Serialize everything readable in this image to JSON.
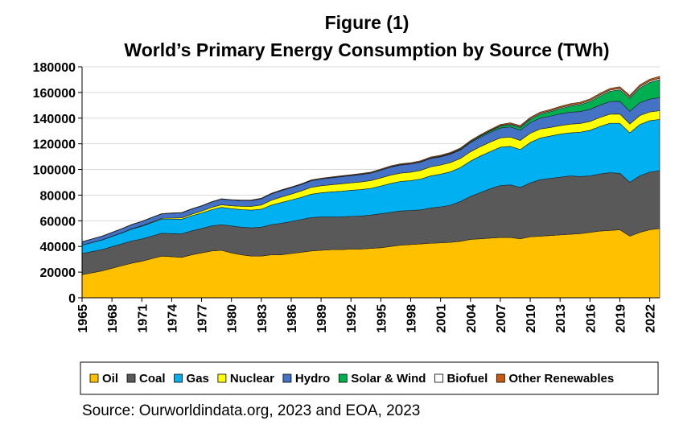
{
  "figure": {
    "title_line1": "Figure (1)",
    "title_line2": "World’s Primary Energy Consumption by Source (TWh)",
    "source": "Source: Ourworldindata.org, 2023 and EOA, 2023"
  },
  "chart_data": {
    "type": "area",
    "stacked": true,
    "title": "World’s Primary Energy Consumption by Source (TWh)",
    "xlabel": "",
    "ylabel": "",
    "ylim": [
      0,
      180000
    ],
    "yticks": [
      "0",
      "20000",
      "40000",
      "60000",
      "80000",
      "100000",
      "120000",
      "140000",
      "160000",
      "180000"
    ],
    "xticks": [
      "1965",
      "1968",
      "1971",
      "1974",
      "1977",
      "1980",
      "1983",
      "1986",
      "1989",
      "1992",
      "1995",
      "1998",
      "2001",
      "2004",
      "2007",
      "2010",
      "2013",
      "2016",
      "2019",
      "2022"
    ],
    "grid": "horizontal",
    "legend_position": "bottom",
    "x": [
      1965,
      1966,
      1967,
      1968,
      1969,
      1970,
      1971,
      1972,
      1973,
      1974,
      1975,
      1976,
      1977,
      1978,
      1979,
      1980,
      1981,
      1982,
      1983,
      1984,
      1985,
      1986,
      1987,
      1988,
      1989,
      1990,
      1991,
      1992,
      1993,
      1994,
      1995,
      1996,
      1997,
      1998,
      1999,
      2000,
      2001,
      2002,
      2003,
      2004,
      2005,
      2006,
      2007,
      2008,
      2009,
      2010,
      2011,
      2012,
      2013,
      2014,
      2015,
      2016,
      2017,
      2018,
      2019,
      2020,
      2021,
      2022,
      2023
    ],
    "series": [
      {
        "name": "Oil",
        "color": "#FFC000",
        "values": [
          18000,
          19500,
          21000,
          23000,
          25000,
          27000,
          28500,
          30500,
          32500,
          32000,
          31500,
          33500,
          35000,
          36500,
          37000,
          35000,
          33500,
          32500,
          32500,
          33500,
          33500,
          34500,
          35500,
          36500,
          37000,
          37500,
          37500,
          38000,
          38000,
          38500,
          39000,
          40000,
          41000,
          41500,
          42000,
          42500,
          42800,
          43200,
          44000,
          45500,
          46000,
          46500,
          47000,
          47000,
          46000,
          47500,
          48000,
          48500,
          49000,
          49500,
          50000,
          51000,
          52000,
          52500,
          53000,
          48000,
          51000,
          53000,
          54000
        ]
      },
      {
        "name": "Coal",
        "color": "#595959",
        "values": [
          16500,
          16500,
          16500,
          16800,
          17000,
          17300,
          17300,
          17500,
          17800,
          18000,
          18300,
          18600,
          19000,
          19500,
          20000,
          21000,
          21500,
          22000,
          22500,
          23500,
          24500,
          25000,
          25500,
          26000,
          26000,
          25500,
          25500,
          25500,
          25700,
          26000,
          26500,
          26500,
          26700,
          26500,
          26500,
          27500,
          28000,
          29000,
          31000,
          33500,
          36000,
          38500,
          40500,
          41000,
          40000,
          42000,
          44000,
          44500,
          45000,
          45500,
          44500,
          44000,
          44500,
          45000,
          44000,
          42000,
          44000,
          45000,
          45000
        ]
      },
      {
        "name": "Gas",
        "color": "#00B0F0",
        "values": [
          6500,
          7000,
          7500,
          8000,
          8500,
          9300,
          10000,
          10500,
          11000,
          11300,
          11400,
          11800,
          12000,
          12600,
          13500,
          13500,
          13700,
          13800,
          14000,
          15200,
          16200,
          16700,
          17200,
          18200,
          18800,
          19500,
          20000,
          20300,
          20600,
          20800,
          21600,
          22600,
          23000,
          23300,
          24000,
          25000,
          25500,
          26000,
          26500,
          27500,
          28500,
          29000,
          29800,
          30000,
          29500,
          31500,
          32500,
          33000,
          33500,
          33500,
          34500,
          35500,
          37000,
          38500,
          39000,
          38500,
          40000,
          40000,
          40000
        ]
      },
      {
        "name": "Nuclear",
        "color": "#FFFF00",
        "values": [
          50,
          80,
          120,
          150,
          200,
          250,
          350,
          500,
          600,
          800,
          1100,
          1200,
          1500,
          1800,
          2000,
          2200,
          2600,
          2900,
          3300,
          3800,
          4300,
          4600,
          5000,
          5300,
          5500,
          5600,
          5800,
          5800,
          6000,
          6100,
          6300,
          6500,
          6500,
          6600,
          6800,
          7000,
          7100,
          7200,
          7100,
          7300,
          7300,
          7400,
          7300,
          7200,
          7100,
          7200,
          7000,
          6700,
          6700,
          6800,
          6800,
          6900,
          7000,
          7100,
          7200,
          6900,
          7000,
          6800,
          6800
        ]
      },
      {
        "name": "Hydro",
        "color": "#4472C4",
        "values": [
          2500,
          2700,
          2800,
          2900,
          3100,
          3200,
          3300,
          3500,
          3500,
          3800,
          3900,
          4000,
          4000,
          4200,
          4400,
          4500,
          4500,
          4600,
          4800,
          4900,
          5000,
          5000,
          5000,
          5200,
          5200,
          5300,
          5500,
          5500,
          5700,
          5700,
          6000,
          6200,
          6200,
          6300,
          6400,
          6500,
          6400,
          6500,
          6600,
          7000,
          7300,
          7500,
          7700,
          8000,
          8000,
          8300,
          8500,
          8800,
          9100,
          9300,
          9300,
          9500,
          9600,
          9800,
          9900,
          10000,
          10000,
          10000,
          10200
        ]
      },
      {
        "name": "Solar & Wind",
        "color": "#00B050",
        "values": [
          0,
          0,
          0,
          0,
          0,
          0,
          0,
          0,
          0,
          0,
          0,
          0,
          0,
          0,
          0,
          0,
          0,
          0,
          0,
          0,
          0,
          0,
          0,
          0,
          50,
          60,
          80,
          100,
          120,
          140,
          160,
          200,
          230,
          260,
          300,
          350,
          400,
          500,
          600,
          700,
          900,
          1100,
          1400,
          1700,
          2000,
          2400,
          3000,
          3500,
          4000,
          4700,
          5300,
          6000,
          7000,
          8000,
          9000,
          10000,
          11500,
          13000,
          14000
        ]
      },
      {
        "name": "Biofuel",
        "color": "#FFFFFF",
        "values": [
          0,
          0,
          0,
          0,
          0,
          0,
          0,
          0,
          0,
          0,
          0,
          0,
          0,
          0,
          0,
          0,
          100,
          120,
          140,
          160,
          180,
          190,
          200,
          200,
          200,
          200,
          200,
          200,
          200,
          200,
          200,
          200,
          200,
          200,
          200,
          200,
          210,
          230,
          260,
          300,
          350,
          420,
          500,
          600,
          650,
          700,
          700,
          700,
          750,
          800,
          800,
          850,
          900,
          950,
          1000,
          950,
          1000,
          1100,
          1150
        ]
      },
      {
        "name": "Other Renewables",
        "color": "#C55A11",
        "values": [
          150,
          150,
          160,
          170,
          180,
          190,
          200,
          210,
          220,
          230,
          240,
          250,
          260,
          270,
          280,
          290,
          300,
          320,
          340,
          360,
          380,
          400,
          420,
          440,
          460,
          480,
          500,
          520,
          540,
          560,
          580,
          600,
          620,
          640,
          660,
          680,
          700,
          720,
          740,
          760,
          790,
          820,
          860,
          900,
          940,
          980,
          1020,
          1060,
          1100,
          1140,
          1180,
          1220,
          1260,
          1300,
          1340,
          1380,
          1420,
          1460,
          1500
        ]
      }
    ]
  }
}
